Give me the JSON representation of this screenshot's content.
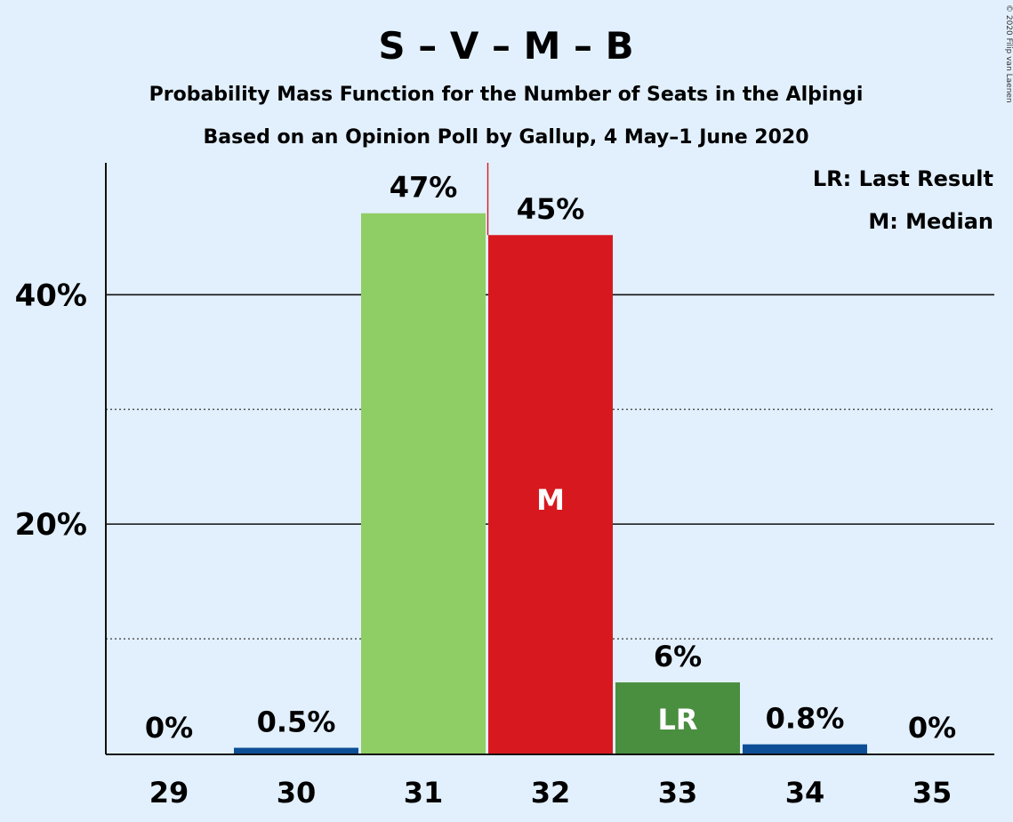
{
  "copyright": "© 2020 Filip van Laenen",
  "chart_data": {
    "type": "bar",
    "title": "S – V – M – B",
    "subtitle": "Probability Mass Function for the Number of Seats in the Alþingi",
    "subtitle2": "Based on an Opinion Poll by Gallup, 4 May–1 June 2020",
    "legend": [
      "LR: Last Result",
      "M: Median"
    ],
    "legend_position": "top-right",
    "categories": [
      "29",
      "30",
      "31",
      "32",
      "33",
      "34",
      "35"
    ],
    "values": [
      0,
      0.5,
      47.1,
      45.2,
      6.2,
      0.8,
      0
    ],
    "data_labels": [
      "0%",
      "0.5%",
      "47%",
      "45%",
      "6%",
      "0.8%",
      "0%"
    ],
    "bar_marks": [
      "",
      "",
      "",
      "M",
      "LR",
      "",
      ""
    ],
    "bar_colors": [
      "#0d4f96",
      "#0d4f96",
      "#8fce64",
      "#d7191f",
      "#4a8f40",
      "#0d4f96",
      "#0d4f96"
    ],
    "ylim": [
      0,
      51.5
    ],
    "y_ticks": [
      {
        "value": 40,
        "label": "40%"
      },
      {
        "value": 20,
        "label": "20%"
      }
    ],
    "minor_gridlines": [
      10,
      30
    ],
    "last_result": "33",
    "median": "32",
    "median_line_color": "#d7191f",
    "grid": true
  }
}
